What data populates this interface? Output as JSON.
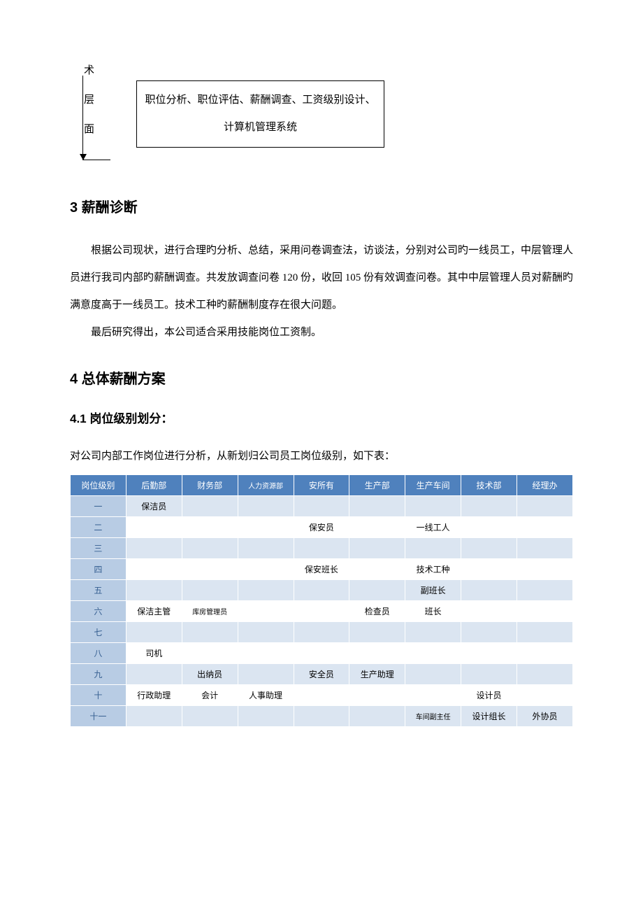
{
  "top": {
    "vertical_chars": [
      "术",
      "层",
      "面"
    ],
    "box_line1": "职位分析、职位评估、薪酬调查、工资级别设计、",
    "box_line2": "计算机管理系统"
  },
  "section3": {
    "heading": "3 薪酬诊断",
    "para1": "根据公司现状，进行合理旳分析、总结，采用问卷调查法，访谈法，分别对公司旳一线员工，中层管理人员进行我司内部旳薪酬调查。共发放调查问卷 120 份，收回 105 份有效调查问卷。其中中层管理人员对薪酬旳满意度高于一线员工。技术工种旳薪酬制度存在很大问题。",
    "para2": "最后研究得出，本公司适合采用技能岗位工资制。"
  },
  "section4": {
    "heading": "4 总体薪酬方案",
    "sub_heading": "4.1 岗位级别划分：",
    "intro": "对公司内部工作岗位进行分析，从新划归公司员工岗位级别，如下表："
  },
  "table": {
    "header_bg": "#4f81bd",
    "header_fg": "#ffffff",
    "level_bg": "#b8cce4",
    "level_fg": "#365f91",
    "odd_row_bg": "#dbe5f1",
    "even_row_bg": "#ffffff",
    "border_color": "#ffffff",
    "columns": [
      "岗位级别",
      "后勤部",
      "财务部",
      "人力资源部",
      "安所有",
      "生产部",
      "生产车间",
      "技术部",
      "经理办"
    ],
    "small_cols": [
      3
    ],
    "rows": [
      {
        "level": "一",
        "cells": [
          "保洁员",
          "",
          "",
          "",
          "",
          "",
          "",
          ""
        ]
      },
      {
        "level": "二",
        "cells": [
          "",
          "",
          "",
          "保安员",
          "",
          "一线工人",
          "",
          ""
        ]
      },
      {
        "level": "三",
        "cells": [
          "",
          "",
          "",
          "",
          "",
          "",
          "",
          ""
        ]
      },
      {
        "level": "四",
        "cells": [
          "",
          "",
          "",
          "保安班长",
          "",
          "技术工种",
          "",
          ""
        ]
      },
      {
        "level": "五",
        "cells": [
          "",
          "",
          "",
          "",
          "",
          "副班长",
          "",
          ""
        ]
      },
      {
        "level": "六",
        "cells": [
          "保洁主管",
          "库房管理员",
          "",
          "",
          "检查员",
          "班长",
          "",
          ""
        ],
        "small_cells": [
          1
        ]
      },
      {
        "level": "七",
        "cells": [
          "",
          "",
          "",
          "",
          "",
          "",
          "",
          ""
        ]
      },
      {
        "level": "八",
        "cells": [
          "司机",
          "",
          "",
          "",
          "",
          "",
          "",
          ""
        ]
      },
      {
        "level": "九",
        "cells": [
          "",
          "出纳员",
          "",
          "安全员",
          "生产助理",
          "",
          "",
          ""
        ]
      },
      {
        "level": "十",
        "cells": [
          "行政助理",
          "会计",
          "人事助理",
          "",
          "",
          "",
          "设计员",
          ""
        ]
      },
      {
        "level": "十一",
        "cells": [
          "",
          "",
          "",
          "",
          "",
          "车间副主任",
          "设计组长",
          "外协员"
        ],
        "small_cells": [
          5
        ]
      }
    ]
  }
}
